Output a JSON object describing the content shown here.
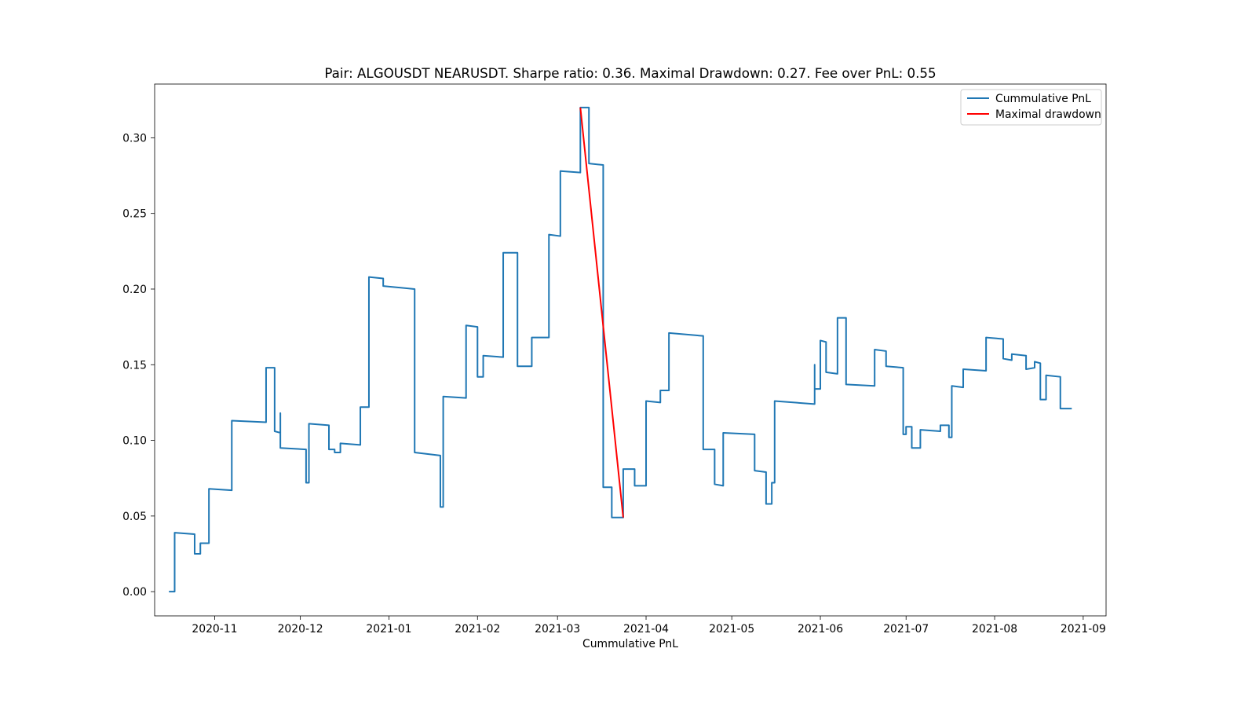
{
  "chart_data": {
    "type": "line",
    "title": "Pair: ALGOUSDT NEARUSDT. Sharpe ratio: 0.36. Maximal Drawdown: 0.27. Fee over PnL: 0.55",
    "xlabel": "Cummulative PnL",
    "ylabel": "",
    "x_axis_type": "date",
    "xlim": [
      "2020-10-11",
      "2021-09-09"
    ],
    "ylim": [
      -0.016,
      0.3355
    ],
    "xticks": [
      "2020-11",
      "2020-12",
      "2021-01",
      "2021-02",
      "2021-03",
      "2021-04",
      "2021-05",
      "2021-06",
      "2021-07",
      "2021-08",
      "2021-09"
    ],
    "yticks": [
      "0.00",
      "0.05",
      "0.10",
      "0.15",
      "0.20",
      "0.25",
      "0.30"
    ],
    "grid": false,
    "legend_position": "top-right",
    "series": [
      {
        "name": "Cummulative PnL",
        "color": "#1f77b4",
        "step": "post",
        "points": [
          [
            "2020-10-16",
            0.0
          ],
          [
            "2020-10-18",
            0.0
          ],
          [
            "2020-10-18",
            0.039
          ],
          [
            "2020-10-25",
            0.038
          ],
          [
            "2020-10-25",
            0.025
          ],
          [
            "2020-10-27",
            0.025
          ],
          [
            "2020-10-27",
            0.032
          ],
          [
            "2020-10-30",
            0.032
          ],
          [
            "2020-10-30",
            0.068
          ],
          [
            "2020-11-07",
            0.067
          ],
          [
            "2020-11-07",
            0.113
          ],
          [
            "2020-11-19",
            0.112
          ],
          [
            "2020-11-19",
            0.148
          ],
          [
            "2020-11-22",
            0.148
          ],
          [
            "2020-11-22",
            0.106
          ],
          [
            "2020-11-24",
            0.105
          ],
          [
            "2020-11-24",
            0.118
          ],
          [
            "2020-11-24",
            0.095
          ],
          [
            "2020-12-03",
            0.094
          ],
          [
            "2020-12-03",
            0.072
          ],
          [
            "2020-12-04",
            0.072
          ],
          [
            "2020-12-04",
            0.111
          ],
          [
            "2020-12-11",
            0.11
          ],
          [
            "2020-12-11",
            0.094
          ],
          [
            "2020-12-13",
            0.094
          ],
          [
            "2020-12-13",
            0.092
          ],
          [
            "2020-12-15",
            0.092
          ],
          [
            "2020-12-15",
            0.098
          ],
          [
            "2020-12-22",
            0.097
          ],
          [
            "2020-12-22",
            0.122
          ],
          [
            "2020-12-25",
            0.122
          ],
          [
            "2020-12-25",
            0.208
          ],
          [
            "2020-12-30",
            0.207
          ],
          [
            "2020-12-30",
            0.202
          ],
          [
            "2021-01-10",
            0.2
          ],
          [
            "2021-01-10",
            0.092
          ],
          [
            "2021-01-19",
            0.09
          ],
          [
            "2021-01-19",
            0.056
          ],
          [
            "2021-01-20",
            0.056
          ],
          [
            "2021-01-20",
            0.129
          ],
          [
            "2021-01-28",
            0.128
          ],
          [
            "2021-01-28",
            0.176
          ],
          [
            "2021-02-01",
            0.175
          ],
          [
            "2021-02-01",
            0.142
          ],
          [
            "2021-02-03",
            0.142
          ],
          [
            "2021-02-03",
            0.156
          ],
          [
            "2021-02-10",
            0.155
          ],
          [
            "2021-02-10",
            0.224
          ],
          [
            "2021-02-15",
            0.224
          ],
          [
            "2021-02-15",
            0.149
          ],
          [
            "2021-02-20",
            0.149
          ],
          [
            "2021-02-20",
            0.168
          ],
          [
            "2021-02-26",
            0.168
          ],
          [
            "2021-02-26",
            0.236
          ],
          [
            "2021-03-02",
            0.235
          ],
          [
            "2021-03-02",
            0.278
          ],
          [
            "2021-03-09",
            0.277
          ],
          [
            "2021-03-09",
            0.32
          ],
          [
            "2021-03-12",
            0.32
          ],
          [
            "2021-03-12",
            0.283
          ],
          [
            "2021-03-17",
            0.282
          ],
          [
            "2021-03-17",
            0.069
          ],
          [
            "2021-03-20",
            0.069
          ],
          [
            "2021-03-20",
            0.049
          ],
          [
            "2021-03-24",
            0.049
          ],
          [
            "2021-03-24",
            0.081
          ],
          [
            "2021-03-28",
            0.081
          ],
          [
            "2021-03-28",
            0.07
          ],
          [
            "2021-04-01",
            0.07
          ],
          [
            "2021-04-01",
            0.126
          ],
          [
            "2021-04-06",
            0.125
          ],
          [
            "2021-04-06",
            0.133
          ],
          [
            "2021-04-09",
            0.133
          ],
          [
            "2021-04-09",
            0.171
          ],
          [
            "2021-04-21",
            0.169
          ],
          [
            "2021-04-21",
            0.094
          ],
          [
            "2021-04-25",
            0.094
          ],
          [
            "2021-04-25",
            0.071
          ],
          [
            "2021-04-28",
            0.07
          ],
          [
            "2021-04-28",
            0.105
          ],
          [
            "2021-05-09",
            0.104
          ],
          [
            "2021-05-09",
            0.08
          ],
          [
            "2021-05-13",
            0.079
          ],
          [
            "2021-05-13",
            0.058
          ],
          [
            "2021-05-15",
            0.058
          ],
          [
            "2021-05-15",
            0.072
          ],
          [
            "2021-05-16",
            0.072
          ],
          [
            "2021-05-16",
            0.126
          ],
          [
            "2021-05-30",
            0.124
          ],
          [
            "2021-05-30",
            0.15
          ],
          [
            "2021-05-30",
            0.134
          ],
          [
            "2021-06-01",
            0.134
          ],
          [
            "2021-06-01",
            0.166
          ],
          [
            "2021-06-03",
            0.165
          ],
          [
            "2021-06-03",
            0.145
          ],
          [
            "2021-06-07",
            0.144
          ],
          [
            "2021-06-07",
            0.181
          ],
          [
            "2021-06-10",
            0.181
          ],
          [
            "2021-06-10",
            0.137
          ],
          [
            "2021-06-20",
            0.136
          ],
          [
            "2021-06-20",
            0.16
          ],
          [
            "2021-06-24",
            0.159
          ],
          [
            "2021-06-24",
            0.149
          ],
          [
            "2021-06-30",
            0.148
          ],
          [
            "2021-06-30",
            0.104
          ],
          [
            "2021-07-01",
            0.104
          ],
          [
            "2021-07-01",
            0.109
          ],
          [
            "2021-07-03",
            0.109
          ],
          [
            "2021-07-03",
            0.095
          ],
          [
            "2021-07-06",
            0.095
          ],
          [
            "2021-07-06",
            0.107
          ],
          [
            "2021-07-13",
            0.106
          ],
          [
            "2021-07-13",
            0.11
          ],
          [
            "2021-07-16",
            0.11
          ],
          [
            "2021-07-16",
            0.102
          ],
          [
            "2021-07-17",
            0.102
          ],
          [
            "2021-07-17",
            0.136
          ],
          [
            "2021-07-21",
            0.135
          ],
          [
            "2021-07-21",
            0.147
          ],
          [
            "2021-07-29",
            0.146
          ],
          [
            "2021-07-29",
            0.168
          ],
          [
            "2021-08-04",
            0.167
          ],
          [
            "2021-08-04",
            0.154
          ],
          [
            "2021-08-07",
            0.153
          ],
          [
            "2021-08-07",
            0.157
          ],
          [
            "2021-08-12",
            0.156
          ],
          [
            "2021-08-12",
            0.147
          ],
          [
            "2021-08-15",
            0.148
          ],
          [
            "2021-08-15",
            0.152
          ],
          [
            "2021-08-17",
            0.151
          ],
          [
            "2021-08-17",
            0.127
          ],
          [
            "2021-08-19",
            0.127
          ],
          [
            "2021-08-19",
            0.143
          ],
          [
            "2021-08-24",
            0.142
          ],
          [
            "2021-08-24",
            0.121
          ],
          [
            "2021-08-28",
            0.121
          ]
        ]
      },
      {
        "name": "Maximal drawdown",
        "color": "#ff0000",
        "points": [
          [
            "2021-03-09",
            0.32
          ],
          [
            "2021-03-24",
            0.049
          ]
        ]
      }
    ]
  }
}
